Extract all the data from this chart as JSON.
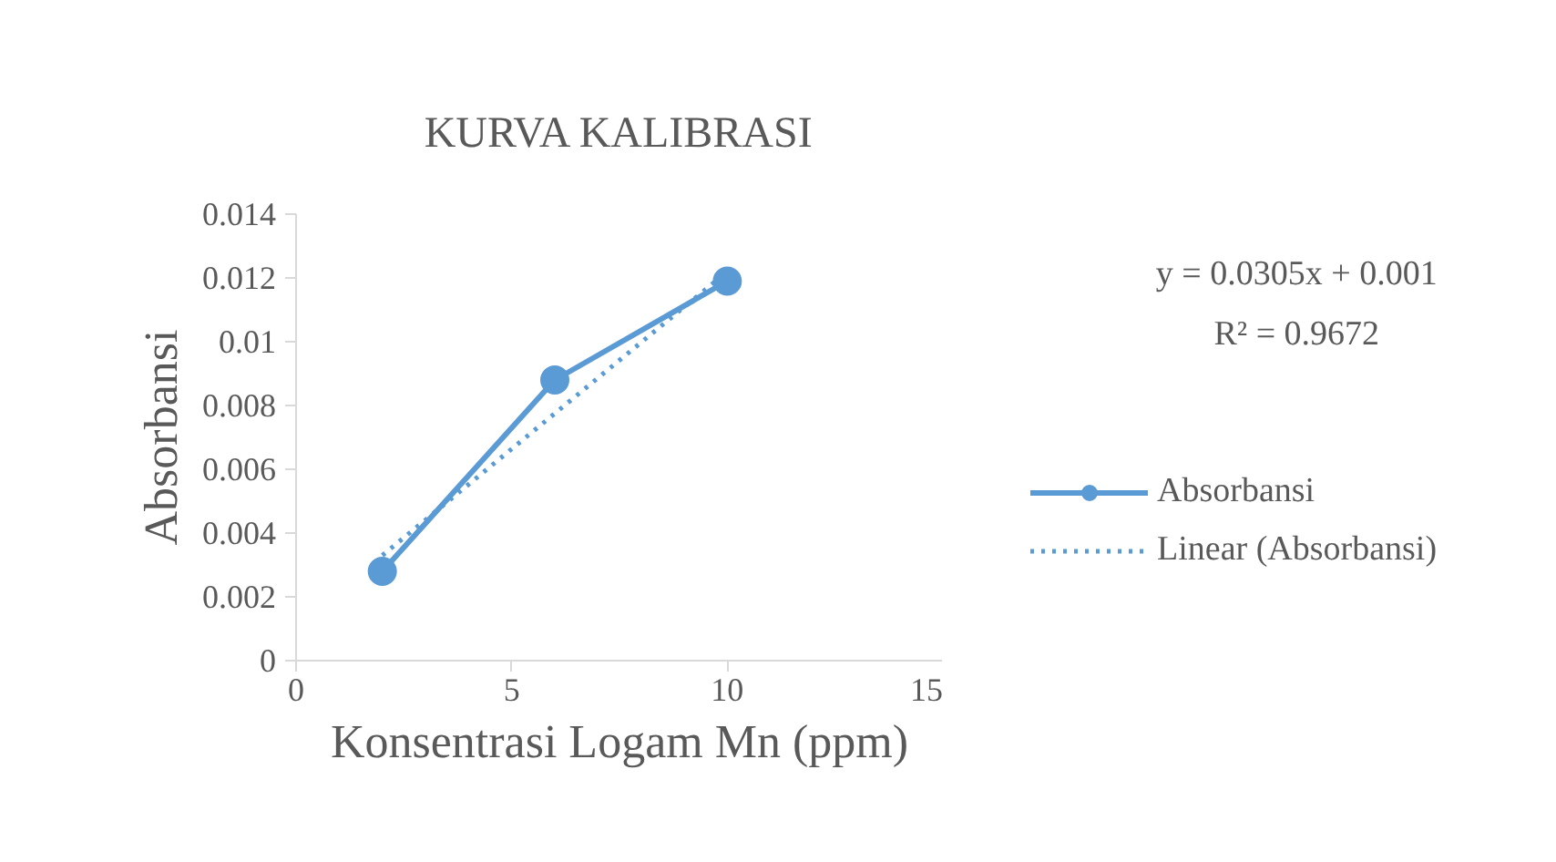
{
  "chart_data": {
    "type": "line",
    "title": "KURVA KALIBRASI",
    "xlabel": "Konsentrasi Logam Mn (ppm)",
    "ylabel": "Absorbansi",
    "x": [
      2,
      6,
      10
    ],
    "series": [
      {
        "name": "Absorbansi",
        "color": "#5b9bd5",
        "values": [
          0.0028,
          0.0088,
          0.0119
        ],
        "marker": "circle",
        "line_style": "solid"
      },
      {
        "name": "Linear (Absorbansi)",
        "color": "#5b9bd5",
        "x": [
          2,
          10
        ],
        "values": [
          0.0033,
          0.0122
        ],
        "marker": "none",
        "line_style": "dotted"
      }
    ],
    "annotations": [
      "y = 0.0305x + 0.001",
      "R² = 0.9672"
    ],
    "xlim": [
      0,
      15
    ],
    "xticks": [
      0,
      5,
      10,
      15
    ],
    "ylim": [
      0,
      0.014
    ],
    "yticks": [
      0,
      0.002,
      0.004,
      0.006,
      0.008,
      0.01,
      0.012,
      0.014
    ],
    "grid": false,
    "legend": "right"
  }
}
